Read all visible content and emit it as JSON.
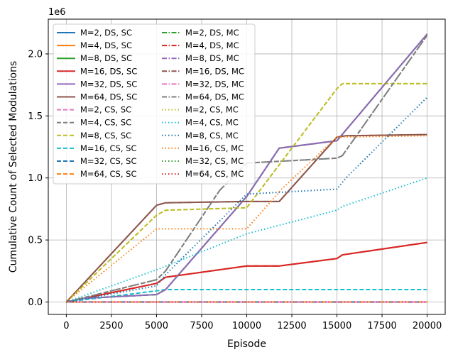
{
  "chart_data": {
    "type": "line",
    "title": "",
    "xlabel": "Episode",
    "ylabel": "Cumulative Count of Selected Modulations",
    "y_multiplier": "1e6",
    "xlim": [
      -1000,
      21000
    ],
    "ylim": [
      -0.1,
      2.28
    ],
    "xticks": [
      0,
      2500,
      5000,
      7500,
      10000,
      12500,
      15000,
      17500,
      20000
    ],
    "xtick_labels": [
      "0",
      "2500",
      "5000",
      "7500",
      "10000",
      "12500",
      "15000",
      "17500",
      "20000"
    ],
    "yticks": [
      0.0,
      0.5,
      1.0,
      1.5,
      2.0
    ],
    "ytick_labels": [
      "0.0",
      "0.5",
      "1.0",
      "1.5",
      "2.0"
    ],
    "y_units": "millions",
    "grid": true,
    "legend_position": "upper-left",
    "legend_columns": 2,
    "series": [
      {
        "name": "M=2, DS, SC",
        "color": "#1f77b4",
        "style": "solid",
        "x": [
          0,
          20000
        ],
        "y": [
          0,
          0
        ]
      },
      {
        "name": "M=4, DS, SC",
        "color": "#ff7f0e",
        "style": "solid",
        "x": [
          0,
          5000,
          5500,
          10000,
          11800,
          15000,
          15300,
          20000
        ],
        "y": [
          0,
          0.15,
          0.2,
          0.29,
          0.29,
          0.35,
          0.38,
          0.48
        ]
      },
      {
        "name": "M=8, DS, SC",
        "color": "#2ca02c",
        "style": "solid",
        "x": [
          0,
          1000,
          5000,
          5500,
          10000,
          11800,
          15000,
          20000
        ],
        "y": [
          0,
          0.03,
          0.06,
          0.1,
          0.85,
          1.24,
          1.3,
          2.16
        ]
      },
      {
        "name": "M=16, DS, SC",
        "color": "#d62728",
        "style": "solid",
        "x": [
          0,
          5000,
          5500,
          10000,
          11800,
          15000,
          15300,
          20000
        ],
        "y": [
          0,
          0.15,
          0.2,
          0.29,
          0.29,
          0.35,
          0.38,
          0.48
        ]
      },
      {
        "name": "M=32, DS, SC",
        "color": "#9467bd",
        "style": "solid",
        "x": [
          0,
          1000,
          5000,
          5500,
          10000,
          11800,
          15000,
          20000
        ],
        "y": [
          0,
          0.03,
          0.06,
          0.1,
          0.85,
          1.24,
          1.3,
          2.16
        ]
      },
      {
        "name": "M=64, DS, SC",
        "color": "#8c564b",
        "style": "solid",
        "x": [
          0,
          5000,
          5500,
          10000,
          11800,
          15000,
          15500,
          20000
        ],
        "y": [
          0,
          0.78,
          0.8,
          0.81,
          0.81,
          1.33,
          1.34,
          1.35
        ]
      },
      {
        "name": "M=2, CS, SC",
        "color": "#e377c2",
        "style": "dashed",
        "x": [
          0,
          20000
        ],
        "y": [
          0,
          0
        ]
      },
      {
        "name": "M=4, CS, SC",
        "color": "#7f7f7f",
        "style": "dashed",
        "x": [
          0,
          5000,
          5500,
          8500,
          10000,
          15000,
          15300,
          20000
        ],
        "y": [
          0,
          0.18,
          0.25,
          0.9,
          1.12,
          1.16,
          1.18,
          2.15
        ]
      },
      {
        "name": "M=8, CS, SC",
        "color": "#bcbd22",
        "style": "dashed",
        "x": [
          0,
          5000,
          5500,
          10000,
          15000,
          15300,
          20000
        ],
        "y": [
          0,
          0.7,
          0.74,
          0.76,
          1.72,
          1.76,
          1.76
        ]
      },
      {
        "name": "M=16, CS, SC",
        "color": "#17becf",
        "style": "dashed",
        "x": [
          0,
          5000,
          5500,
          20000
        ],
        "y": [
          0,
          0.09,
          0.1,
          0.1
        ]
      },
      {
        "name": "M=32, CS, SC",
        "color": "#1f77b4",
        "style": "dashed",
        "x": [
          0,
          20000
        ],
        "y": [
          0,
          0
        ]
      },
      {
        "name": "M=64, CS, SC",
        "color": "#ff7f0e",
        "style": "dashed",
        "x": [
          0,
          20000
        ],
        "y": [
          0,
          0
        ]
      },
      {
        "name": "M=2, DS, MC",
        "color": "#2ca02c",
        "style": "dashdot",
        "x": [
          0,
          1000,
          5000,
          5500,
          10000,
          11800,
          15000,
          20000
        ],
        "y": [
          0,
          0.03,
          0.06,
          0.1,
          0.85,
          1.24,
          1.3,
          2.16
        ]
      },
      {
        "name": "M=4, DS, MC",
        "color": "#d62728",
        "style": "dashdot",
        "x": [
          0,
          5000,
          5500,
          10000,
          11800,
          15000,
          15300,
          20000
        ],
        "y": [
          0,
          0.15,
          0.2,
          0.29,
          0.29,
          0.35,
          0.38,
          0.48
        ]
      },
      {
        "name": "M=8, DS, MC",
        "color": "#9467bd",
        "style": "dashdot",
        "x": [
          0,
          1000,
          5000,
          5500,
          10000,
          11800,
          15000,
          20000
        ],
        "y": [
          0,
          0.03,
          0.06,
          0.1,
          0.85,
          1.24,
          1.3,
          2.16
        ]
      },
      {
        "name": "M=16, DS, MC",
        "color": "#8c564b",
        "style": "dashdot",
        "x": [
          0,
          5000,
          5500,
          10000,
          11800,
          15000,
          15500,
          20000
        ],
        "y": [
          0,
          0.78,
          0.8,
          0.81,
          0.81,
          1.33,
          1.34,
          1.35
        ]
      },
      {
        "name": "M=32, DS, MC",
        "color": "#e377c2",
        "style": "dashdot",
        "x": [
          0,
          20000
        ],
        "y": [
          0,
          0
        ]
      },
      {
        "name": "M=64, DS, MC",
        "color": "#7f7f7f",
        "style": "dashdot",
        "x": [
          0,
          5000,
          5500,
          8500,
          10000,
          15000,
          15300,
          20000
        ],
        "y": [
          0,
          0.18,
          0.25,
          0.9,
          1.12,
          1.16,
          1.18,
          2.15
        ]
      },
      {
        "name": "M=2, CS, MC",
        "color": "#bcbd22",
        "style": "dotted",
        "x": [
          0,
          5000,
          5500,
          10000,
          15000,
          15300,
          20000
        ],
        "y": [
          0,
          0.7,
          0.74,
          0.76,
          1.72,
          1.76,
          1.76
        ]
      },
      {
        "name": "M=4, CS, MC",
        "color": "#17becf",
        "style": "dotted",
        "x": [
          0,
          5000,
          10000,
          15000,
          15300,
          20000
        ],
        "y": [
          0,
          0.26,
          0.55,
          0.74,
          0.77,
          1.0
        ]
      },
      {
        "name": "M=8, CS, MC",
        "color": "#1f77b4",
        "style": "dotted",
        "x": [
          0,
          5000,
          5500,
          10000,
          15000,
          15500,
          20000
        ],
        "y": [
          0,
          0.13,
          0.22,
          0.87,
          0.91,
          1.0,
          1.65
        ]
      },
      {
        "name": "M=16, CS, MC",
        "color": "#ff7f0e",
        "style": "dotted",
        "x": [
          0,
          5000,
          10000,
          12000,
          15000,
          20000
        ],
        "y": [
          0,
          0.59,
          0.59,
          0.92,
          1.33,
          1.34
        ]
      },
      {
        "name": "M=32, CS, MC",
        "color": "#2ca02c",
        "style": "dotted",
        "x": [
          0,
          20000
        ],
        "y": [
          0,
          0
        ]
      },
      {
        "name": "M=64, CS, MC",
        "color": "#d62728",
        "style": "dotted",
        "x": [
          0,
          20000
        ],
        "y": [
          0,
          0
        ]
      }
    ]
  }
}
